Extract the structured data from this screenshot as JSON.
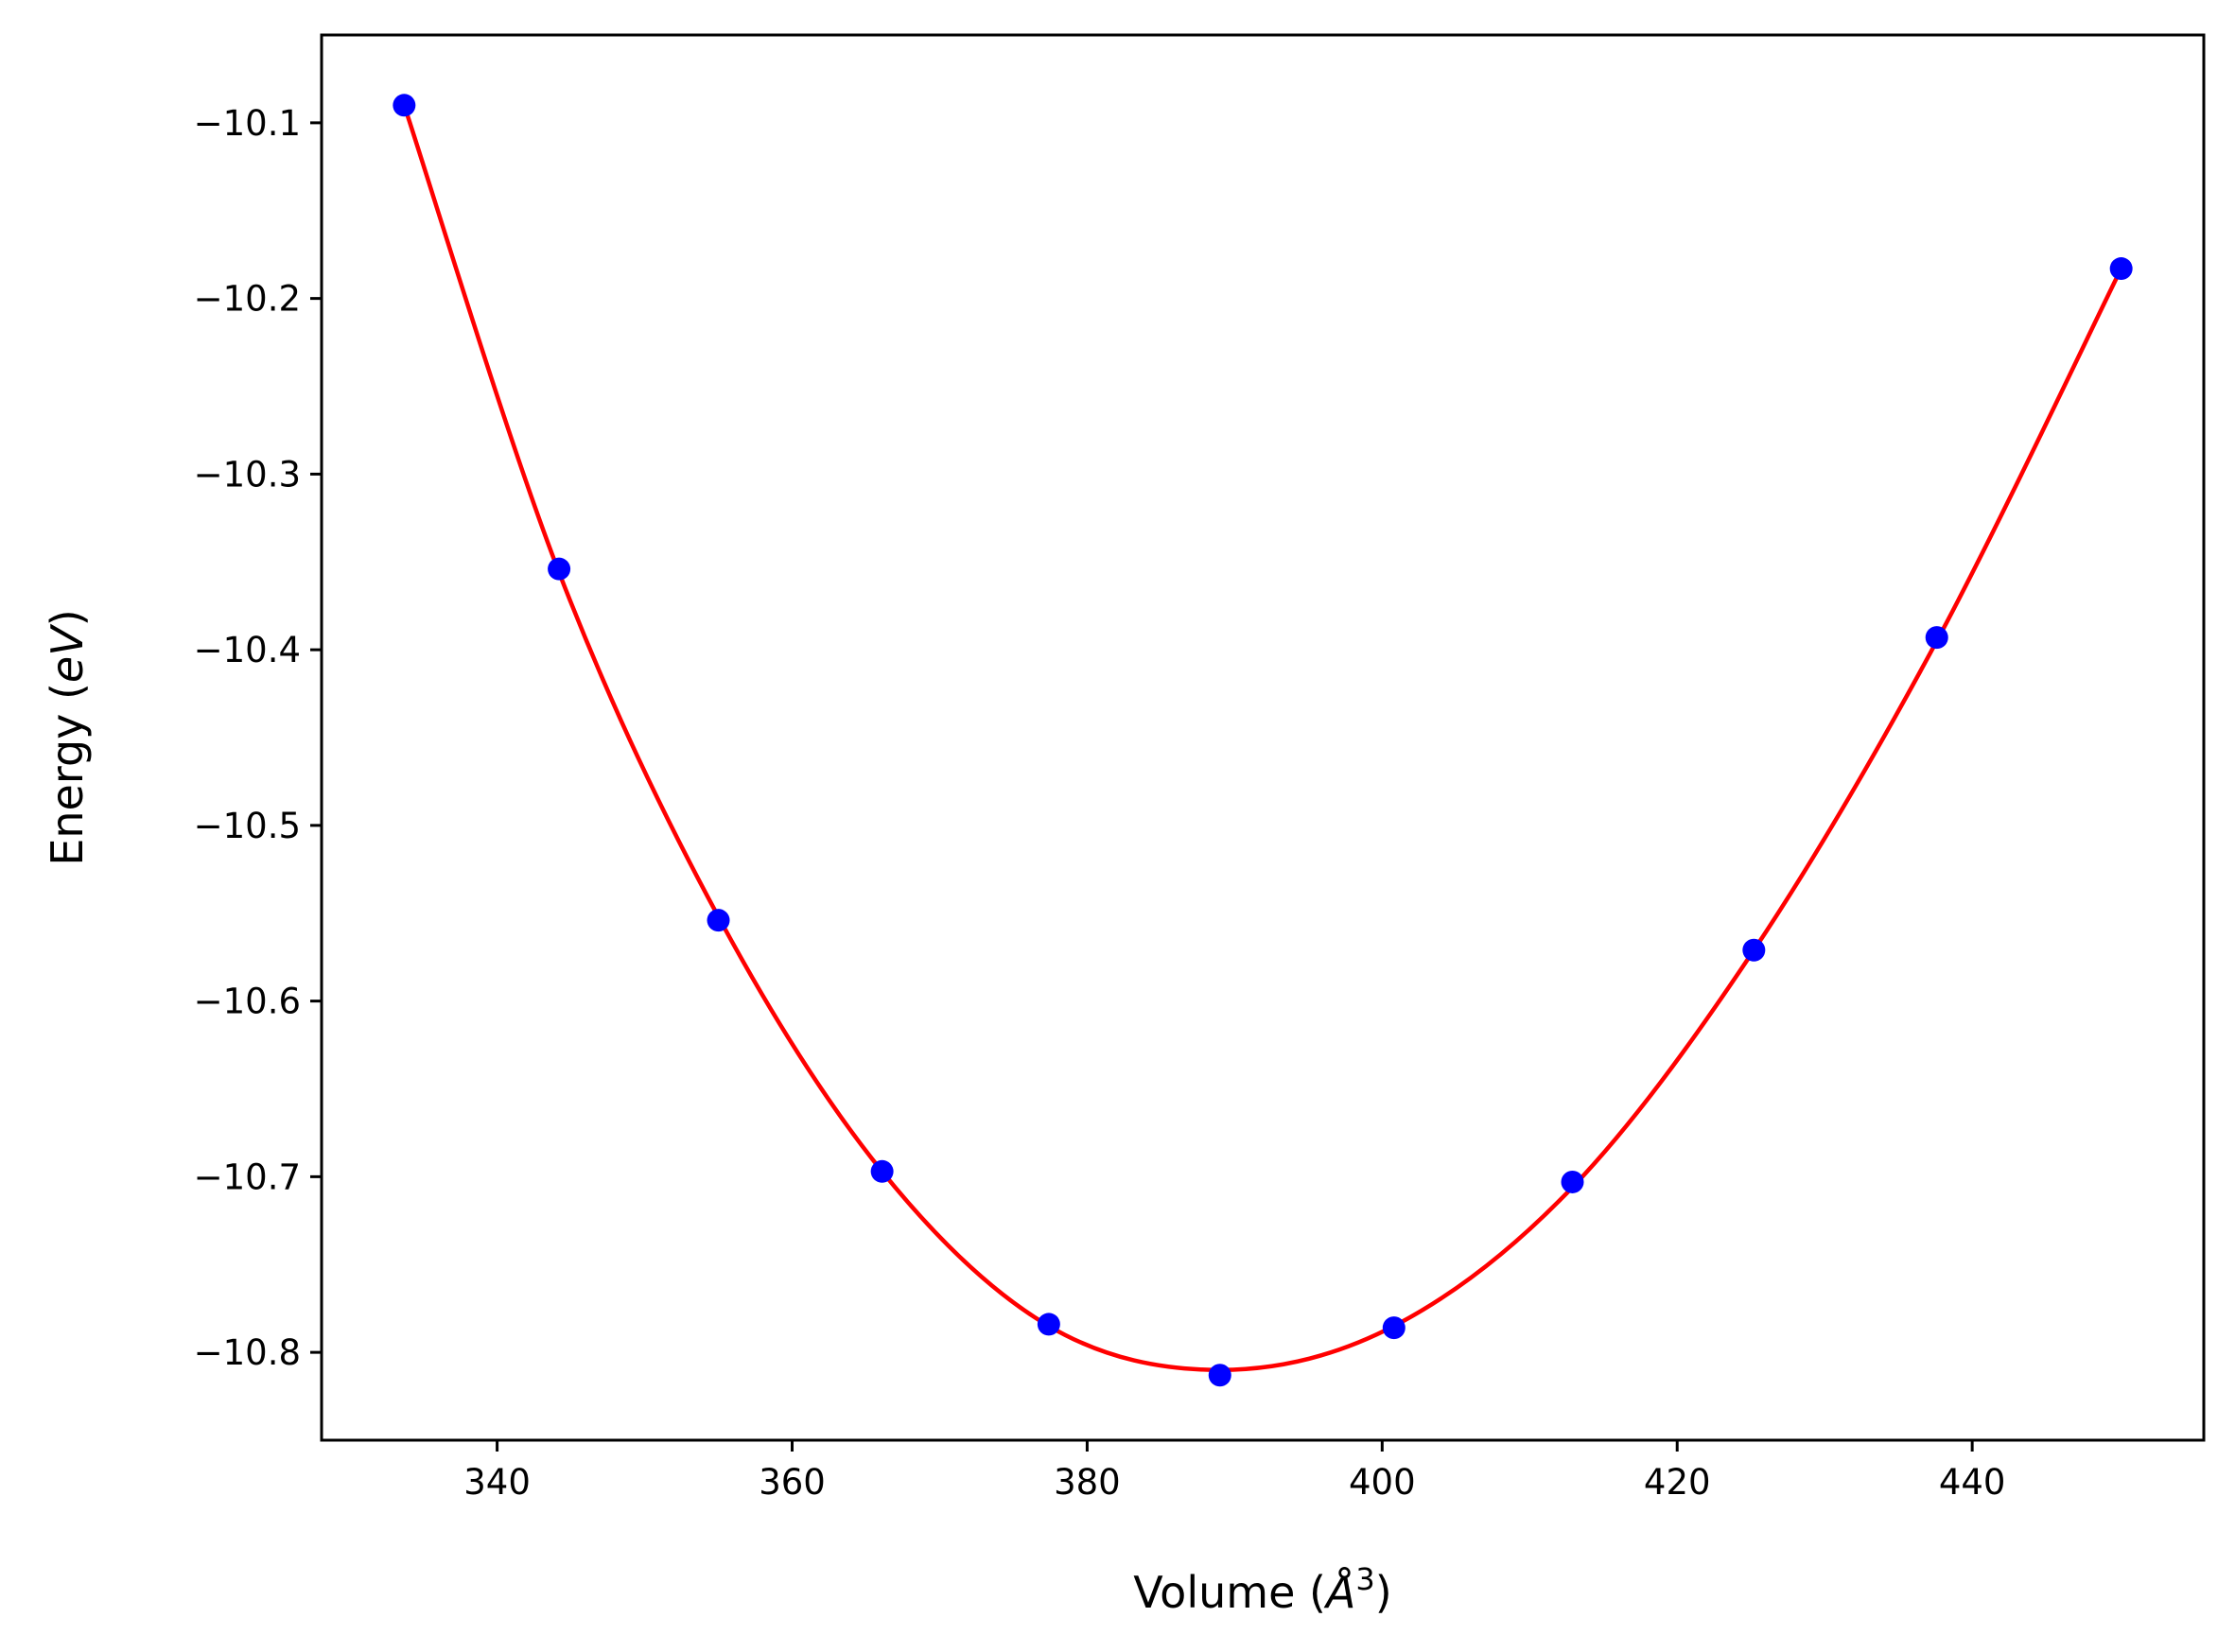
{
  "chart_data": {
    "type": "scatter",
    "title": "",
    "xlabel_main": "Volume (",
    "xlabel_italic": "Å",
    "xlabel_sup": "3",
    "xlabel_close": ")",
    "ylabel_main": "Energy (",
    "ylabel_italic": "eV",
    "ylabel_close": ")",
    "xlim": [
      328.1,
      455.7
    ],
    "ylim": [
      -10.85,
      -10.05
    ],
    "x_ticks": [
      340,
      360,
      380,
      400,
      420,
      440
    ],
    "x_tick_labels": [
      "340",
      "360",
      "380",
      "400",
      "420",
      "440"
    ],
    "y_ticks": [
      -10.8,
      -10.7,
      -10.6,
      -10.5,
      -10.4,
      -10.3,
      -10.2,
      -10.1
    ],
    "y_tick_labels": [
      "−10.8",
      "−10.7",
      "−10.6",
      "−10.5",
      "−10.4",
      "−10.3",
      "−10.2",
      "−10.1"
    ],
    "grid": false,
    "series": [
      {
        "kind": "points",
        "color": "#0000ff",
        "x": [
          333.7,
          344.2,
          355.0,
          366.1,
          377.4,
          389.0,
          400.8,
          412.9,
          425.2,
          437.6,
          450.1
        ],
        "y": [
          -10.09,
          -10.354,
          -10.554,
          -10.697,
          -10.784,
          -10.813,
          -10.786,
          -10.703,
          -10.571,
          -10.393,
          -10.183
        ]
      },
      {
        "kind": "fit-line",
        "color": "#ff0000",
        "x": [
          333.7,
          344.2,
          355.0,
          366.1,
          377.4,
          389.0,
          400.8,
          412.9,
          425.2,
          437.6,
          450.1
        ],
        "y": [
          -10.09,
          -10.356,
          -10.552,
          -10.697,
          -10.785,
          -10.81,
          -10.785,
          -10.706,
          -10.571,
          -10.395,
          -10.183
        ]
      }
    ]
  }
}
